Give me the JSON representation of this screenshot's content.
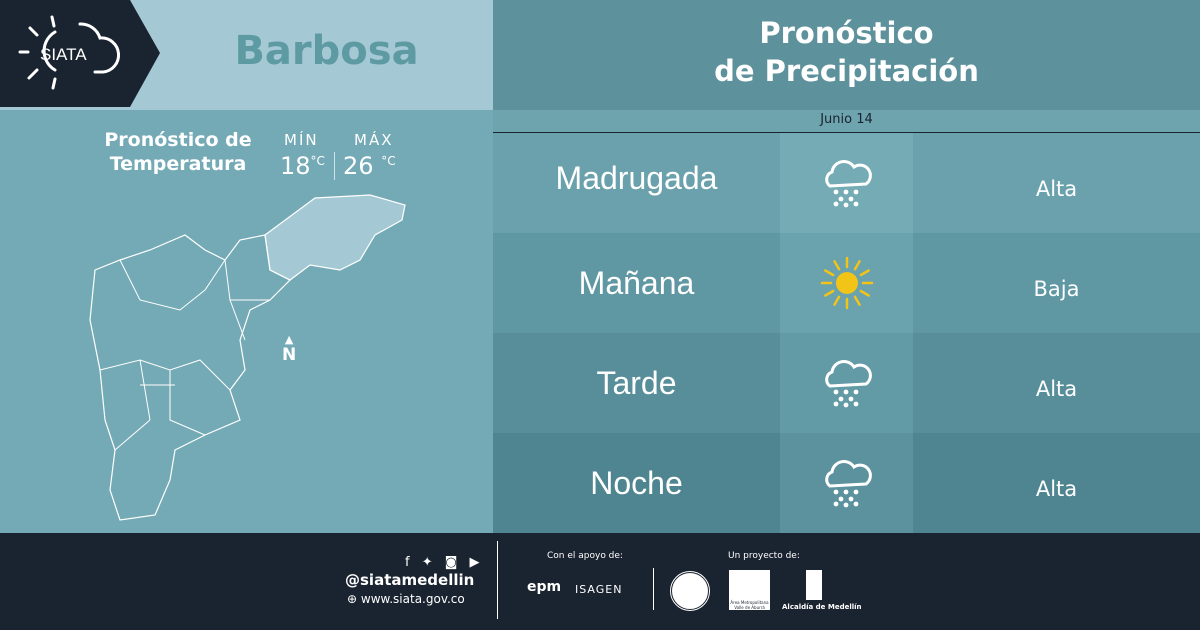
{
  "logo": {
    "text": "SIATA"
  },
  "city": "Barbosa",
  "temperature": {
    "title_line1": "Pronóstico de",
    "title_line2": "Temperatura",
    "min_label": "MÍN",
    "max_label": "MÁX",
    "min": "18",
    "max": "26",
    "unit": "°C"
  },
  "map": {
    "north_label": "N"
  },
  "precipitation": {
    "title_line1": "Pronóstico",
    "title_line2": "de Precipitación",
    "date": "Junio 14",
    "rows": [
      {
        "period": "Madrugada",
        "icon": "rain-cloud-icon",
        "level": "Alta"
      },
      {
        "period": "Mañana",
        "icon": "sun-icon",
        "level": "Baja"
      },
      {
        "period": "Tarde",
        "icon": "rain-cloud-icon",
        "level": "Alta"
      },
      {
        "period": "Noche",
        "icon": "rain-cloud-icon",
        "level": "Alta"
      }
    ]
  },
  "footer": {
    "handle": "@siatamedellin",
    "website": "www.siata.gov.co",
    "support_label": "Con el apoyo de:",
    "project_label": "Un proyecto de:",
    "sponsors": [
      "epm",
      "ISAGEN"
    ],
    "partners": [
      "Área Metropolitana Valle de Aburrá",
      "Alcaldía de Medellín"
    ]
  },
  "colors": {
    "dark": "#1a2330",
    "accent": "#5e9aa2",
    "sun": "#f2c418"
  }
}
